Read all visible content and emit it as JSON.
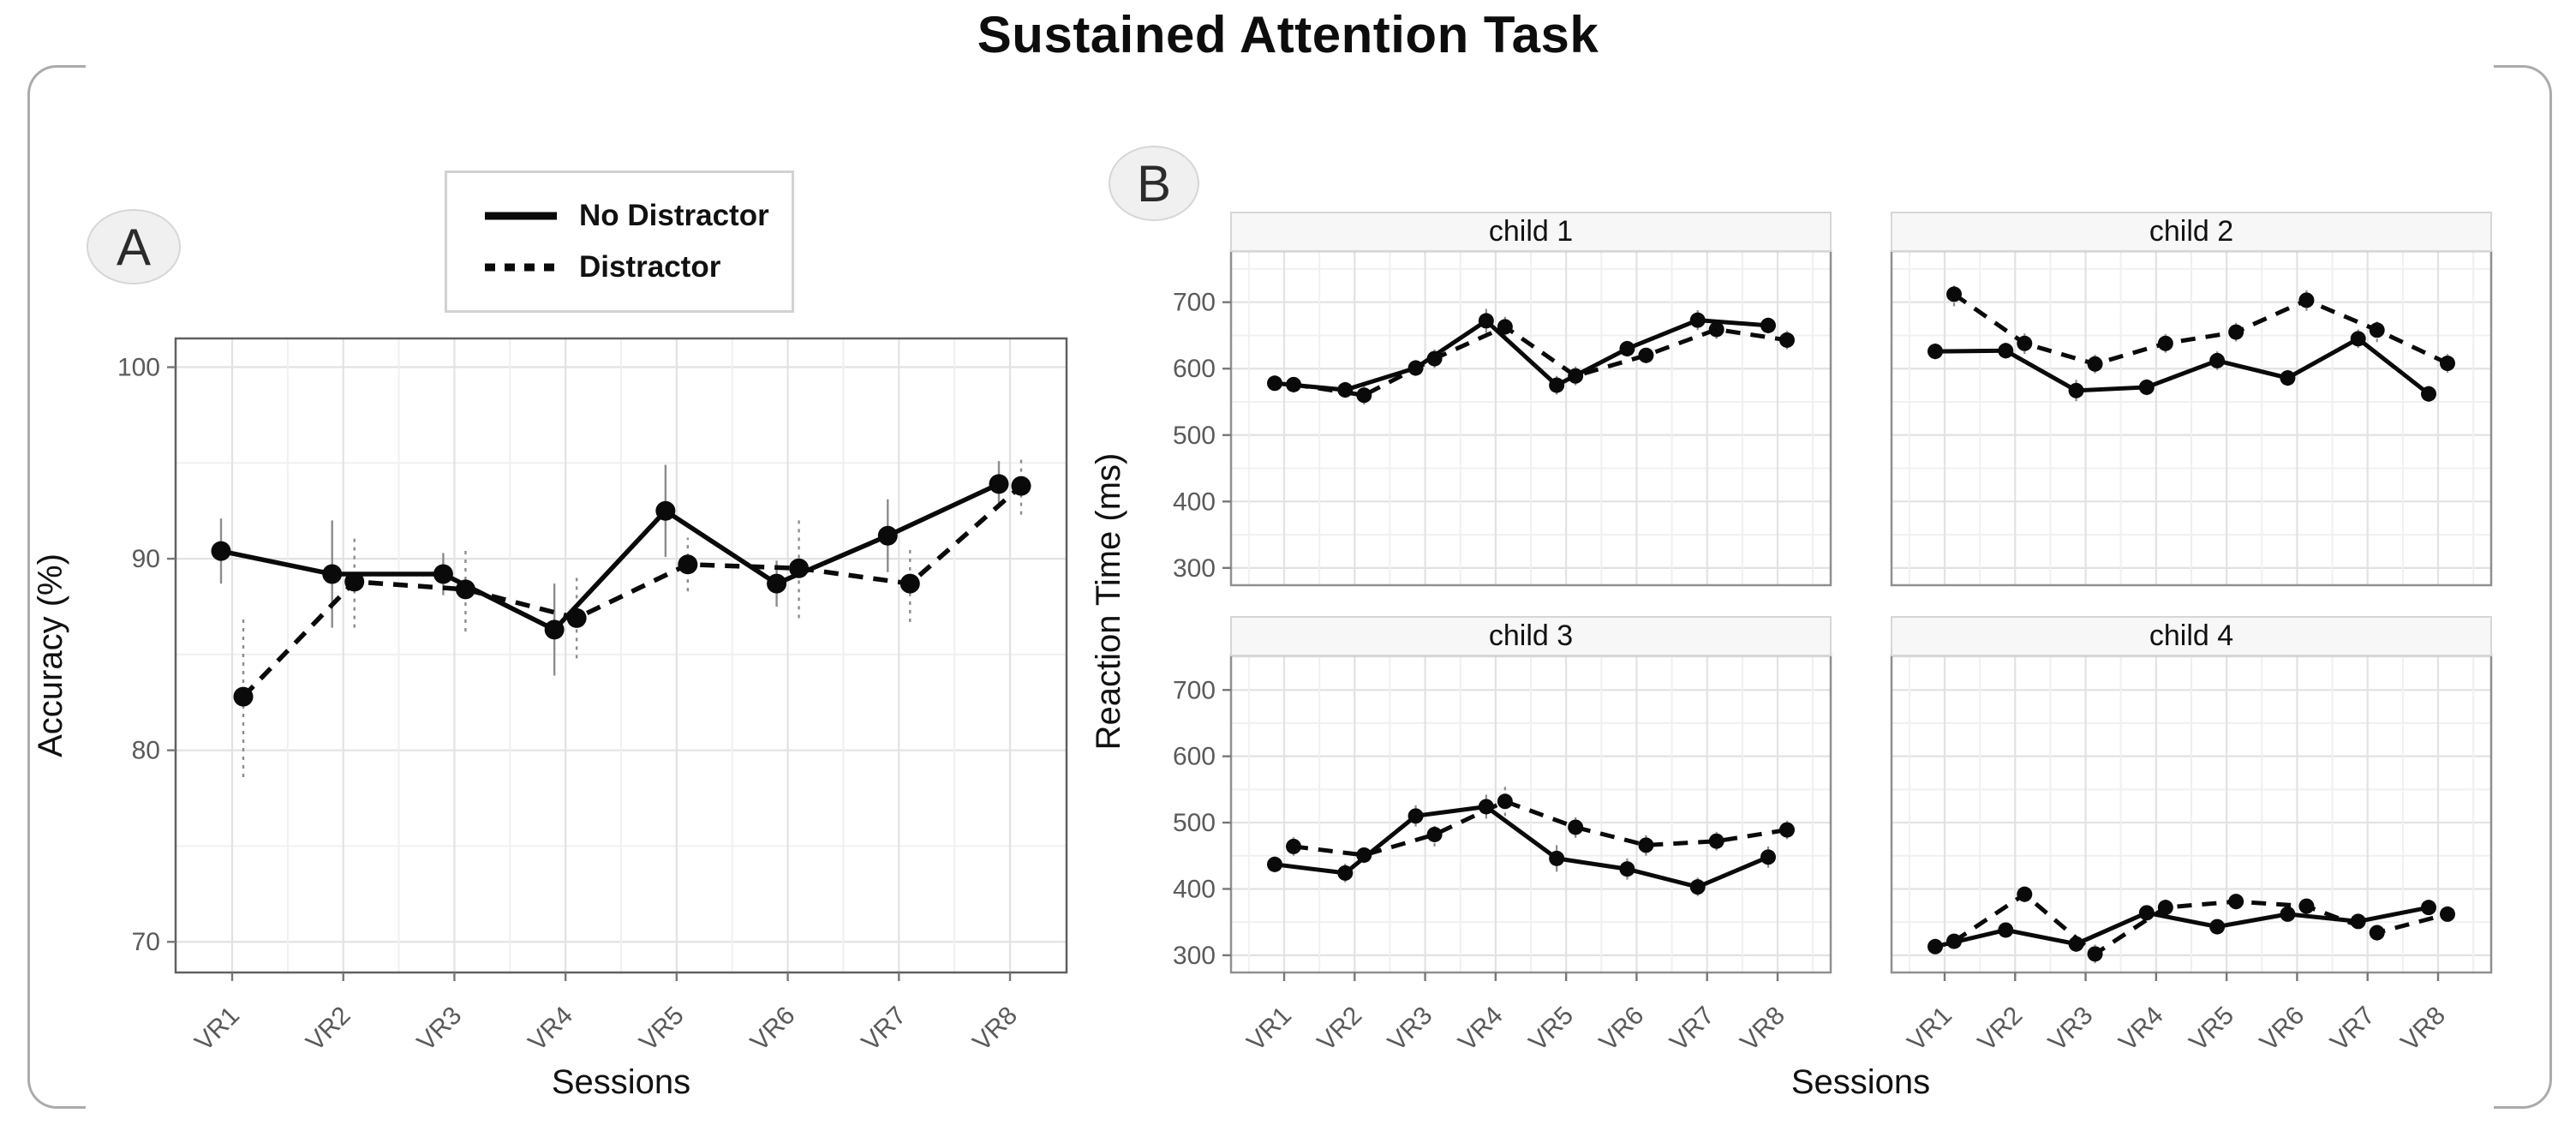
{
  "figure": {
    "title": "Sustained Attention Task",
    "panel_a_badge": "A",
    "panel_b_badge": "B"
  },
  "legend": {
    "items": [
      {
        "label": "No Distractor",
        "style": "solid"
      },
      {
        "label": "Distractor",
        "style": "dashed"
      }
    ]
  },
  "colors": {
    "series": "#0a0a0a",
    "error_bar": "#8c8c8c",
    "grid_major": "#e2e2e2",
    "grid_minor": "#f0f0f0",
    "axis_text": "#5a5a5a",
    "axis_title": "#111111",
    "panel_border": "#606060",
    "facet_border": "#8f8f8f",
    "strip_bg": "#f7f7f7",
    "strip_border": "#d6d6d6",
    "strip_text": "#111111"
  },
  "chart_data": [
    {
      "id": "accuracy",
      "type": "line",
      "panel": "A",
      "title": "",
      "categories": [
        "VR1",
        "VR2",
        "VR3",
        "VR4",
        "VR5",
        "VR6",
        "VR7",
        "VR8"
      ],
      "xlabel": "Sessions",
      "ylabel": "Accuracy (%)",
      "ylim": [
        68.4,
        101.5
      ],
      "yticks": [
        70,
        80,
        90,
        100
      ],
      "grid": true,
      "legend_position": "top-left",
      "series": [
        {
          "name": "No Distractor",
          "style": "solid",
          "values": [
            90.4,
            89.2,
            89.2,
            86.3,
            92.5,
            88.7,
            91.2,
            93.9
          ],
          "errors": [
            1.7,
            2.8,
            1.1,
            2.4,
            2.4,
            1.2,
            1.9,
            1.2
          ]
        },
        {
          "name": "Distractor",
          "style": "dashed",
          "values": [
            82.8,
            88.8,
            88.4,
            86.9,
            89.7,
            89.5,
            88.7,
            93.8
          ],
          "errors": [
            4.2,
            2.4,
            2.2,
            2.1,
            1.4,
            2.6,
            2.0,
            1.5
          ]
        }
      ]
    },
    {
      "id": "rt_child1",
      "type": "line",
      "panel": "B",
      "facet": "child 1",
      "categories": [
        "VR1",
        "VR2",
        "VR3",
        "VR4",
        "VR5",
        "VR6",
        "VR7",
        "VR8"
      ],
      "xlabel": "Sessions",
      "ylabel": "Reaction Time (ms)",
      "ylim": [
        274,
        777
      ],
      "yticks": [
        300,
        400,
        500,
        600,
        700
      ],
      "grid": true,
      "series": [
        {
          "name": "No Distractor",
          "style": "solid",
          "values": [
            578,
            568,
            601,
            672,
            575,
            630,
            673,
            665
          ],
          "errors": [
            10,
            12,
            12,
            18,
            14,
            12,
            15,
            12
          ]
        },
        {
          "name": "Distractor",
          "style": "dashed",
          "values": [
            576,
            560,
            615,
            663,
            589,
            620,
            659,
            643
          ],
          "errors": [
            12,
            14,
            14,
            16,
            14,
            12,
            14,
            14
          ]
        }
      ]
    },
    {
      "id": "rt_child2",
      "type": "line",
      "panel": "B",
      "facet": "child 2",
      "categories": [
        "VR1",
        "VR2",
        "VR3",
        "VR4",
        "VR5",
        "VR6",
        "VR7",
        "VR8"
      ],
      "xlabel": "Sessions",
      "ylabel": "Reaction Time (ms)",
      "ylim": [
        274,
        777
      ],
      "yticks": [
        300,
        400,
        500,
        600,
        700
      ],
      "grid": true,
      "series": [
        {
          "name": "No Distractor",
          "style": "solid",
          "values": [
            626,
            627,
            567,
            572,
            612,
            586,
            645,
            562
          ],
          "errors": [
            12,
            12,
            16,
            12,
            14,
            12,
            14,
            12
          ]
        },
        {
          "name": "Distractor",
          "style": "dashed",
          "values": [
            712,
            638,
            607,
            638,
            655,
            703,
            658,
            608
          ],
          "errors": [
            18,
            16,
            14,
            14,
            14,
            16,
            18,
            14
          ]
        }
      ]
    },
    {
      "id": "rt_child3",
      "type": "line",
      "panel": "B",
      "facet": "child 3",
      "categories": [
        "VR1",
        "VR2",
        "VR3",
        "VR4",
        "VR5",
        "VR6",
        "VR7",
        "VR8"
      ],
      "xlabel": "Sessions",
      "ylabel": "Reaction Time (ms)",
      "ylim": [
        274,
        752
      ],
      "yticks": [
        300,
        400,
        500,
        600,
        700
      ],
      "grid": true,
      "series": [
        {
          "name": "No Distractor",
          "style": "solid",
          "values": [
            437,
            424,
            510,
            524,
            446,
            430,
            403,
            448
          ],
          "errors": [
            12,
            14,
            16,
            18,
            20,
            16,
            14,
            16
          ]
        },
        {
          "name": "Distractor",
          "style": "dashed",
          "values": [
            464,
            451,
            482,
            532,
            493,
            466,
            472,
            489
          ],
          "errors": [
            14,
            12,
            18,
            22,
            16,
            16,
            14,
            14
          ]
        }
      ]
    },
    {
      "id": "rt_child4",
      "type": "line",
      "panel": "B",
      "facet": "child 4",
      "categories": [
        "VR1",
        "VR2",
        "VR3",
        "VR4",
        "VR5",
        "VR6",
        "VR7",
        "VR8"
      ],
      "xlabel": "Sessions",
      "ylabel": "Reaction Time (ms)",
      "ylim": [
        274,
        752
      ],
      "yticks": [
        300,
        400,
        500,
        600,
        700
      ],
      "grid": true,
      "series": [
        {
          "name": "No Distractor",
          "style": "solid",
          "values": [
            313,
            338,
            317,
            364,
            343,
            362,
            351,
            372
          ],
          "errors": [
            10,
            10,
            12,
            10,
            10,
            10,
            10,
            10
          ]
        },
        {
          "name": "Distractor",
          "style": "dashed",
          "values": [
            321,
            392,
            302,
            372,
            381,
            374,
            334,
            362
          ],
          "errors": [
            10,
            12,
            14,
            10,
            12,
            10,
            12,
            10
          ]
        }
      ]
    }
  ]
}
